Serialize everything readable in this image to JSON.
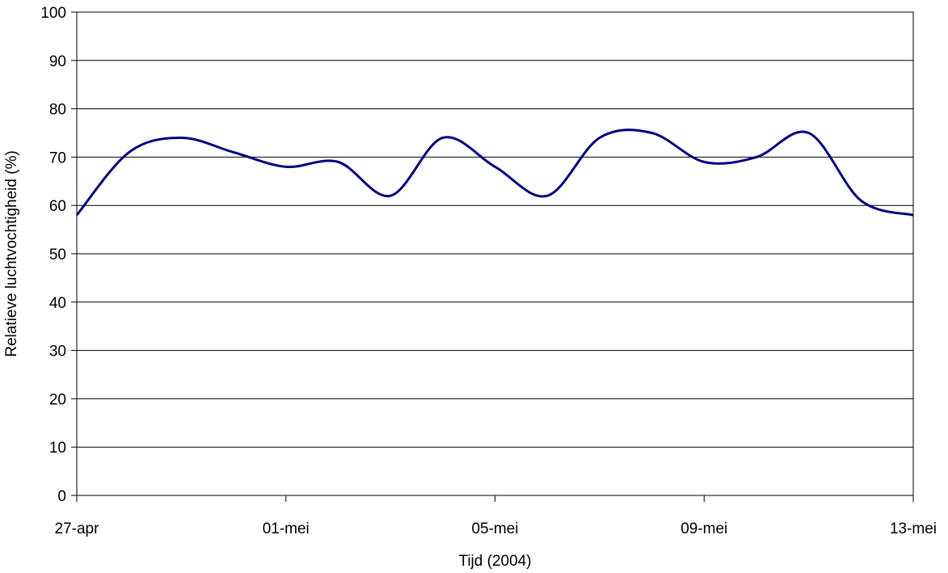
{
  "chart_data": {
    "type": "line",
    "title": "",
    "xlabel": "Tijd (2004)",
    "ylabel": "Relatieve luchtvochtigheid (%)",
    "ylim": [
      0,
      100
    ],
    "y_ticks": [
      0,
      10,
      20,
      30,
      40,
      50,
      60,
      70,
      80,
      90,
      100
    ],
    "x_range": [
      "2004-04-27",
      "2004-05-13"
    ],
    "x_tick_labels": [
      {
        "date": "2004-04-27",
        "label": "27-apr"
      },
      {
        "date": "2004-05-01",
        "label": "01-mei"
      },
      {
        "date": "2004-05-05",
        "label": "05-mei"
      },
      {
        "date": "2004-05-09",
        "label": "09-mei"
      },
      {
        "date": "2004-05-13",
        "label": "13-mei"
      }
    ],
    "grid": "horizontal",
    "legend": "none",
    "line_color": "#000080",
    "series": [
      {
        "x": [
          "2004-04-27",
          "2004-04-28",
          "2004-04-29",
          "2004-04-30",
          "2004-05-01",
          "2004-05-02",
          "2004-05-03",
          "2004-05-04",
          "2004-05-05",
          "2004-05-06",
          "2004-05-07",
          "2004-05-08",
          "2004-05-09",
          "2004-05-10",
          "2004-05-11",
          "2004-05-12",
          "2004-05-13"
        ],
        "values": [
          58,
          71,
          74,
          71,
          68,
          69,
          62,
          74,
          68,
          62,
          74,
          75,
          69,
          70,
          75,
          61,
          58
        ]
      }
    ]
  }
}
